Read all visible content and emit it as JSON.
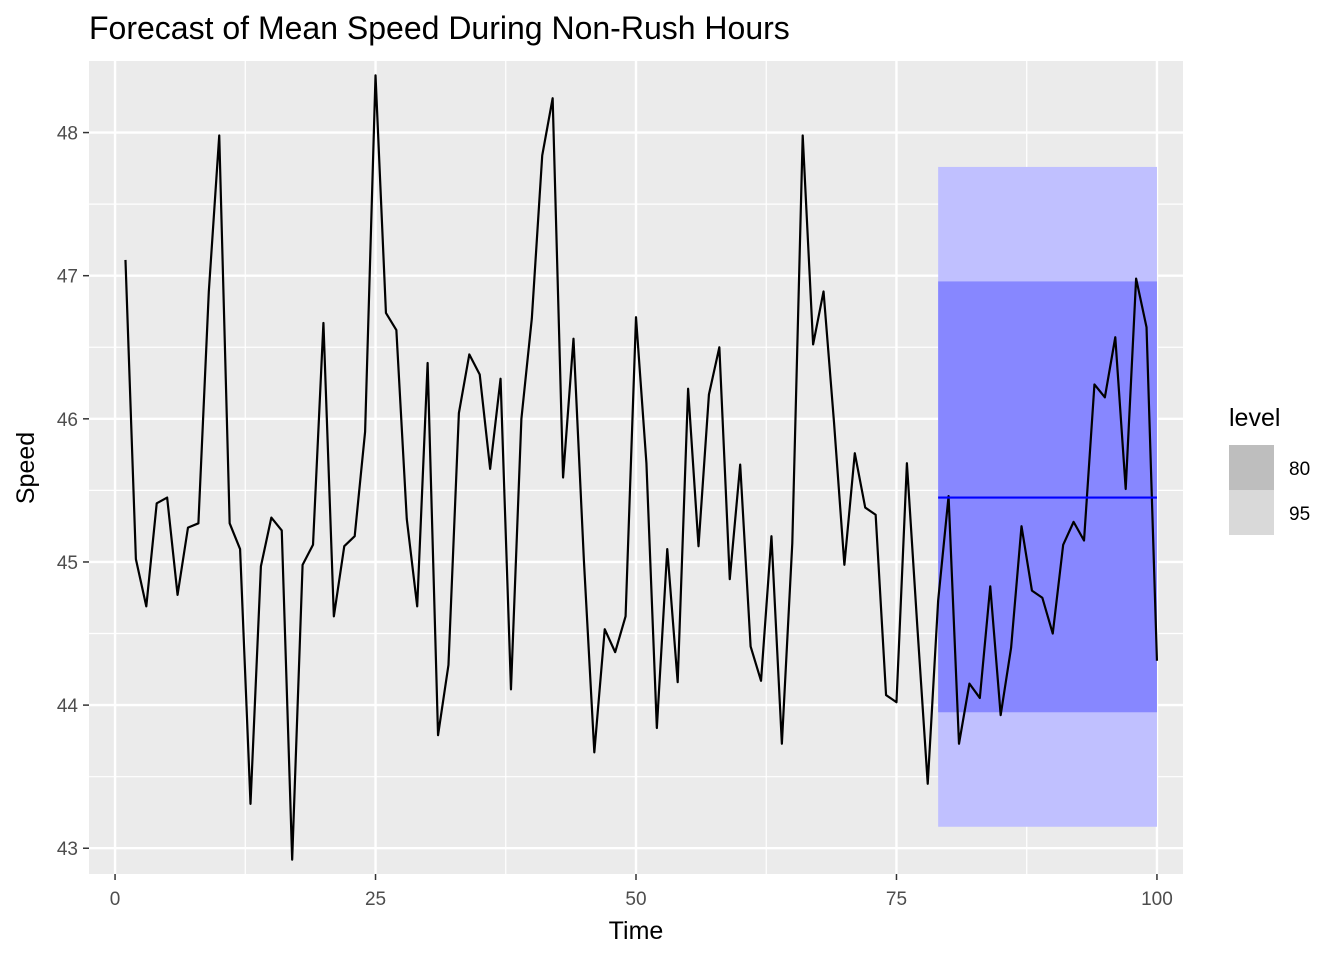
{
  "chart_data": {
    "type": "line",
    "title": "Forecast of Mean Speed During Non-Rush Hours",
    "xlabel": "Time",
    "ylabel": "Speed",
    "xlim": [
      -2.5,
      102.5
    ],
    "ylim": [
      42.82,
      48.5
    ],
    "xticks": [
      0,
      25,
      50,
      75,
      100
    ],
    "xtick_labels": [
      "0",
      "25",
      "50",
      "75",
      "100"
    ],
    "yticks": [
      43,
      44,
      45,
      46,
      47,
      48
    ],
    "ytick_labels": [
      "43",
      "44",
      "45",
      "46",
      "47",
      "48"
    ],
    "grid": true,
    "legend": {
      "title": "level",
      "position": "right",
      "entries": [
        {
          "label": "80",
          "color": "#bebebe"
        },
        {
          "label": "95",
          "color": "#d9d9d9"
        }
      ]
    },
    "series": [
      {
        "role": "observed",
        "color": "#000000",
        "x": [
          1,
          2,
          3,
          4,
          5,
          6,
          7,
          8,
          9,
          10,
          11,
          12,
          13,
          14,
          15,
          16,
          17,
          18,
          19,
          20,
          21,
          22,
          23,
          24,
          25,
          26,
          27,
          28,
          29,
          30,
          31,
          32,
          33,
          34,
          35,
          36,
          37,
          38,
          39,
          40,
          41,
          42,
          43,
          44,
          45,
          46,
          47,
          48,
          49,
          50,
          51,
          52,
          53,
          54,
          55,
          56,
          57,
          58,
          59,
          60,
          61,
          62,
          63,
          64,
          65,
          66,
          67,
          68,
          69,
          70,
          71,
          72,
          73,
          74,
          75,
          76,
          77,
          78,
          79,
          80,
          81,
          82,
          83,
          84,
          85,
          86,
          87,
          88,
          89,
          90,
          91,
          92,
          93,
          94,
          95,
          96,
          97,
          98,
          99,
          100
        ],
        "y": [
          47.11,
          45.02,
          44.69,
          45.41,
          45.45,
          44.77,
          45.24,
          45.27,
          46.89,
          47.98,
          45.27,
          45.09,
          43.31,
          44.97,
          45.31,
          45.22,
          42.92,
          44.98,
          45.12,
          46.67,
          44.62,
          45.11,
          45.18,
          45.91,
          48.4,
          46.74,
          46.62,
          45.3,
          44.69,
          46.39,
          43.79,
          44.28,
          46.04,
          46.45,
          46.31,
          45.65,
          46.28,
          44.11,
          46.0,
          46.7,
          47.84,
          48.24,
          45.59,
          46.56,
          45.01,
          43.67,
          44.53,
          44.37,
          44.62,
          46.71,
          45.69,
          43.84,
          45.09,
          44.16,
          46.21,
          45.11,
          46.17,
          46.5,
          44.88,
          45.68,
          44.41,
          44.17,
          45.18,
          43.73,
          45.13,
          47.98,
          46.52,
          46.89,
          45.98,
          44.98,
          45.76,
          45.38,
          45.33,
          44.07,
          44.02,
          45.69,
          44.55,
          43.45,
          44.73,
          45.46,
          43.73,
          44.15,
          44.05,
          44.83,
          43.93,
          44.4,
          45.25,
          44.8,
          44.75,
          44.5,
          45.12,
          45.28,
          45.15,
          46.24,
          46.15,
          46.57,
          45.51,
          46.98,
          46.64,
          44.31
        ]
      },
      {
        "role": "forecast-mean",
        "color": "#0000ff",
        "x": [
          79,
          100
        ],
        "y": [
          45.45,
          45.45
        ]
      }
    ],
    "bands": [
      {
        "level": "95",
        "x": [
          79,
          100
        ],
        "lower": 43.15,
        "upper": 47.76,
        "color": "#c0c0ff"
      },
      {
        "level": "80",
        "x": [
          79,
          100
        ],
        "lower": 43.95,
        "upper": 46.96,
        "color": "#8787ff"
      }
    ]
  }
}
